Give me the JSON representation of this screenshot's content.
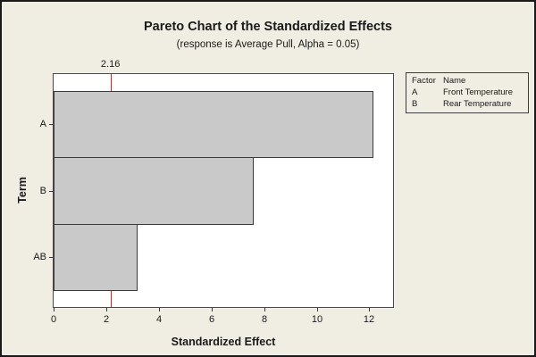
{
  "title": "Pareto Chart of the Standardized Effects",
  "subtitle": "(response is Average Pull, Alpha = 0.05)",
  "chart_data": {
    "type": "bar",
    "orientation": "horizontal",
    "title": "Pareto Chart of the Standardized Effects",
    "subtitle": "(response is Average Pull, Alpha = 0.05)",
    "categories": [
      "A",
      "B",
      "AB"
    ],
    "values": [
      12.15,
      7.6,
      3.2
    ],
    "xlabel": "Standardized Effect",
    "ylabel": "Term",
    "xticks": [
      0,
      2,
      4,
      6,
      8,
      10,
      12
    ],
    "xlim": [
      0,
      12.9
    ],
    "grid": false,
    "reference_line": {
      "value": 2.16,
      "label": "2.16",
      "color": "#a83732"
    },
    "bar_fill": "#c9c9c9",
    "bar_border": "#3a3a3a"
  },
  "legend": {
    "position": "top-right",
    "header": {
      "factor": "Factor",
      "name": "Name"
    },
    "rows": [
      {
        "factor": "A",
        "name": "Front Temperature"
      },
      {
        "factor": "B",
        "name": "Rear Temperature"
      }
    ]
  },
  "colors": {
    "background": "#f0ede3",
    "plot_background": "#ffffff",
    "frame_border": "#1a1a1a",
    "plot_border": "#4a4a4a",
    "axis": "#3a3a3a",
    "text": "#1a1a1a",
    "bar_fill": "#c9c9c9",
    "bar_border": "#3a3a3a",
    "reference_line": "#a83732"
  }
}
